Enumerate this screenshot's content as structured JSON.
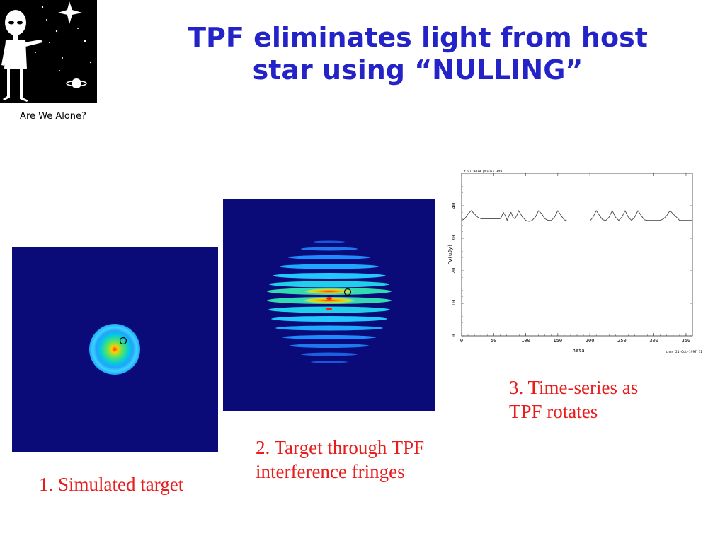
{
  "logo": {
    "caption": "Are We Alone?"
  },
  "title": {
    "lines": [
      "TPF eliminates light from host",
      "star using “NULLING”"
    ]
  },
  "panels": [
    {
      "caption_lines": [
        "1. Simulated target"
      ]
    },
    {
      "caption_lines": [
        "2. Target  through TPF",
        "interference fringes"
      ]
    },
    {
      "caption_lines": [
        "3. Time-series as",
        "TPF rotates"
      ]
    }
  ],
  "chart_data": {
    "type": "line",
    "header": "# of data points 194",
    "footer": "chas 21-Oct-1997 11",
    "xlabel": "Theta",
    "ylabel": "Fν(uJy)",
    "xlim": [
      0,
      360
    ],
    "ylim": [
      0,
      50
    ],
    "xticks": [
      0,
      50,
      100,
      150,
      200,
      250,
      300,
      350
    ],
    "yticks": [
      0,
      10,
      20,
      30,
      40
    ],
    "series": [
      {
        "x": [
          0,
          5,
          10,
          15,
          20,
          25,
          30,
          35,
          40,
          45,
          50,
          55,
          60,
          62,
          65,
          68,
          71,
          74,
          77,
          80,
          83,
          86,
          89,
          92,
          95,
          100,
          105,
          110,
          115,
          120,
          125,
          130,
          135,
          140,
          145,
          150,
          155,
          160,
          165,
          170,
          175,
          180,
          185,
          190,
          195,
          200,
          205,
          210,
          215,
          220,
          225,
          230,
          235,
          240,
          245,
          250,
          255,
          260,
          265,
          270,
          275,
          280,
          285,
          290,
          295,
          300,
          305,
          310,
          315,
          320,
          325,
          330,
          335,
          340,
          345,
          350,
          355,
          360
        ],
        "y": [
          35.5,
          36,
          37.5,
          38.5,
          37.5,
          36.5,
          36,
          36,
          36,
          36,
          36,
          36,
          36,
          36.5,
          38,
          37,
          35.5,
          37,
          38,
          36.5,
          36,
          37,
          38.5,
          37.5,
          36.5,
          35.5,
          35.2,
          35.5,
          36.5,
          38.5,
          37.5,
          36,
          35.5,
          35.5,
          36.5,
          38.5,
          37,
          35.7,
          35.3,
          35.3,
          35.3,
          35.3,
          35.3,
          35.3,
          35.3,
          35.3,
          36.5,
          38.5,
          37,
          35.7,
          35.5,
          36.5,
          38.5,
          36.5,
          35.5,
          36.5,
          38.5,
          36.5,
          35.5,
          36.5,
          38.5,
          37,
          35.7,
          35.5,
          35.5,
          35.5,
          35.5,
          35.5,
          36,
          37,
          38.5,
          37.5,
          36.5,
          35.5,
          35.5,
          35.5,
          35.5,
          35.5
        ]
      }
    ]
  }
}
